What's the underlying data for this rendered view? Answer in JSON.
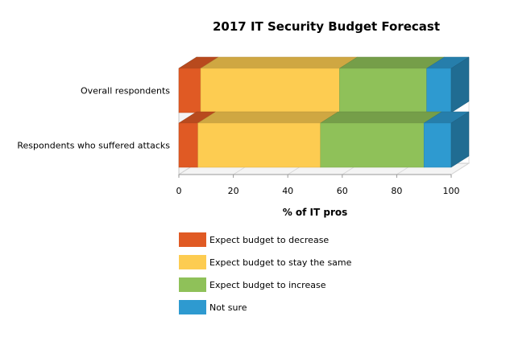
{
  "chart_data": {
    "type": "bar",
    "orientation": "horizontal",
    "stacked": true,
    "title": "2017 IT Security Budget Forecast",
    "xlabel": "% of IT pros",
    "ylabel": "",
    "xlim": [
      0,
      100
    ],
    "x_ticks": [
      "0",
      "20",
      "40",
      "60",
      "80",
      "100"
    ],
    "categories": [
      "Overall respondents",
      "Respondents who suffered attacks"
    ],
    "series": [
      {
        "name": "Expect budget to decrease",
        "values": [
          8,
          7
        ],
        "color": "#e05a24"
      },
      {
        "name": "Expect budget to stay the same",
        "values": [
          51,
          45
        ],
        "color": "#fdcc51"
      },
      {
        "name": "Expect budget to increase",
        "values": [
          32,
          38
        ],
        "color": "#8fc159"
      },
      {
        "name": "Not sure",
        "values": [
          9,
          10
        ],
        "color": "#2e9ad0"
      }
    ],
    "grid": true,
    "legend_position": "bottom"
  }
}
